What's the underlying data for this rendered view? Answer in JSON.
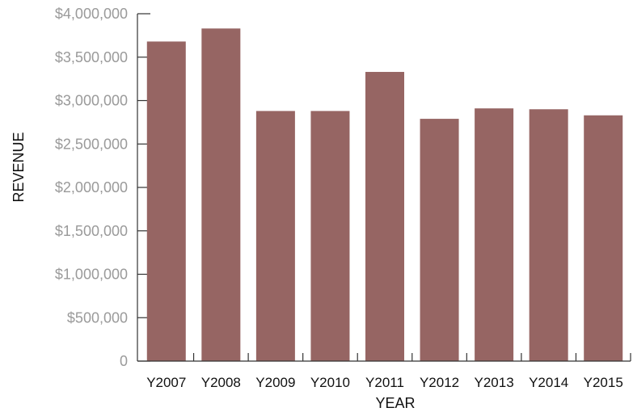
{
  "chart_data": {
    "type": "bar",
    "xlabel": "YEAR",
    "ylabel": "REVENUE",
    "categories": [
      "Y2007",
      "Y2008",
      "Y2009",
      "Y2010",
      "Y2011",
      "Y2012",
      "Y2013",
      "Y2014",
      "Y2015"
    ],
    "values": [
      3680000,
      3830000,
      2880000,
      2880000,
      3330000,
      2790000,
      2910000,
      2900000,
      2830000
    ],
    "ylim": [
      0,
      4000000
    ],
    "yticks": [
      0,
      500000,
      1000000,
      1500000,
      2000000,
      2500000,
      3000000,
      3500000,
      4000000
    ],
    "ytick_labels": [
      "0",
      "$500,000",
      "$1,000,000",
      "$1,500,000",
      "$2,000,000",
      "$2,500,000",
      "$3,000,000",
      "$3,500,000",
      "$4,000,000"
    ],
    "grid": false,
    "legend": "none",
    "bar_color": "#966563"
  }
}
